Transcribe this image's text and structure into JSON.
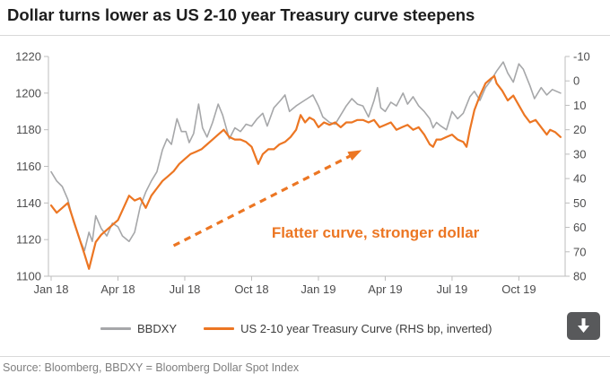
{
  "chart_data": {
    "type": "line",
    "title": "Dollar turns lower as US 2-10 year Treasury curve steepens",
    "x_axis": {
      "unit": "months since Jan 2018",
      "range": [
        0,
        22.87
      ],
      "tick_months": [
        0,
        3,
        6,
        9,
        12,
        15,
        18,
        21
      ],
      "tick_labels": [
        "Jan 18",
        "Apr 18",
        "Jul 18",
        "Oct 18",
        "Jan 19",
        "Apr 19",
        "Jul 19",
        "Oct 19"
      ]
    },
    "left_axis": {
      "min": 1100,
      "max": 1220,
      "step": 20,
      "inverted": false,
      "ticks": [
        1220,
        1200,
        1180,
        1160,
        1140,
        1120,
        1100
      ]
    },
    "right_axis": {
      "min": -10,
      "max": 80,
      "step": 10,
      "inverted": true,
      "unit": "bp",
      "ticks": [
        -10,
        0,
        10,
        20,
        30,
        40,
        50,
        60,
        70,
        80
      ]
    },
    "grid": false,
    "legend_position": "bottom",
    "series": [
      {
        "name": "BBDXY",
        "axis": "left",
        "color": "#a6a7a9",
        "width": 1.6,
        "points": [
          [
            0,
            1157
          ],
          [
            0.25,
            1152
          ],
          [
            0.5,
            1149
          ],
          [
            0.75,
            1142
          ],
          [
            1,
            1130
          ],
          [
            1.25,
            1121
          ],
          [
            1.5,
            1114
          ],
          [
            1.7,
            1124
          ],
          [
            1.85,
            1119
          ],
          [
            2,
            1133
          ],
          [
            2.25,
            1126
          ],
          [
            2.5,
            1122
          ],
          [
            2.75,
            1129
          ],
          [
            3,
            1127
          ],
          [
            3.2,
            1122
          ],
          [
            3.5,
            1119
          ],
          [
            3.75,
            1124
          ],
          [
            4,
            1138
          ],
          [
            4.25,
            1146
          ],
          [
            4.5,
            1152
          ],
          [
            4.75,
            1157
          ],
          [
            5,
            1169
          ],
          [
            5.2,
            1175
          ],
          [
            5.4,
            1172
          ],
          [
            5.65,
            1186
          ],
          [
            5.85,
            1179
          ],
          [
            6.05,
            1179
          ],
          [
            6.2,
            1173
          ],
          [
            6.4,
            1178
          ],
          [
            6.62,
            1194
          ],
          [
            6.8,
            1181
          ],
          [
            7,
            1176
          ],
          [
            7.25,
            1184
          ],
          [
            7.5,
            1194
          ],
          [
            7.7,
            1188
          ],
          [
            8,
            1175
          ],
          [
            8.25,
            1181
          ],
          [
            8.5,
            1179
          ],
          [
            8.75,
            1183
          ],
          [
            9,
            1182
          ],
          [
            9.25,
            1186
          ],
          [
            9.5,
            1189
          ],
          [
            9.7,
            1182
          ],
          [
            10,
            1192
          ],
          [
            10.3,
            1196
          ],
          [
            10.5,
            1199
          ],
          [
            10.7,
            1190
          ],
          [
            11,
            1193
          ],
          [
            11.25,
            1195
          ],
          [
            11.5,
            1197
          ],
          [
            11.75,
            1199
          ],
          [
            12,
            1193
          ],
          [
            12.2,
            1187
          ],
          [
            12.5,
            1184
          ],
          [
            12.75,
            1183
          ],
          [
            13,
            1188
          ],
          [
            13.25,
            1193
          ],
          [
            13.5,
            1197
          ],
          [
            13.75,
            1194
          ],
          [
            14,
            1193
          ],
          [
            14.25,
            1187
          ],
          [
            14.5,
            1196
          ],
          [
            14.65,
            1203
          ],
          [
            14.8,
            1192
          ],
          [
            15,
            1190
          ],
          [
            15.25,
            1195
          ],
          [
            15.5,
            1193
          ],
          [
            15.8,
            1200
          ],
          [
            16,
            1194
          ],
          [
            16.25,
            1198
          ],
          [
            16.5,
            1193
          ],
          [
            16.75,
            1190
          ],
          [
            17,
            1186
          ],
          [
            17.15,
            1181
          ],
          [
            17.3,
            1184
          ],
          [
            17.5,
            1182
          ],
          [
            17.75,
            1180
          ],
          [
            18,
            1190
          ],
          [
            18.25,
            1186
          ],
          [
            18.5,
            1189
          ],
          [
            18.8,
            1198
          ],
          [
            19,
            1201
          ],
          [
            19.25,
            1196
          ],
          [
            19.5,
            1203
          ],
          [
            19.75,
            1207
          ],
          [
            20,
            1212
          ],
          [
            20.3,
            1217
          ],
          [
            20.5,
            1211
          ],
          [
            20.75,
            1206
          ],
          [
            21,
            1216
          ],
          [
            21.2,
            1213
          ],
          [
            21.5,
            1204
          ],
          [
            21.7,
            1197
          ],
          [
            22,
            1203
          ],
          [
            22.25,
            1199
          ],
          [
            22.5,
            1202
          ],
          [
            22.87,
            1200
          ]
        ]
      },
      {
        "name": "US 2-10 year Treasury Curve (RHS bp, inverted)",
        "axis": "right",
        "color": "#ec7623",
        "width": 2.2,
        "points": [
          [
            0,
            51
          ],
          [
            0.25,
            54
          ],
          [
            0.5,
            52
          ],
          [
            0.75,
            50
          ],
          [
            1,
            57
          ],
          [
            1.25,
            64
          ],
          [
            1.5,
            71
          ],
          [
            1.7,
            77
          ],
          [
            2,
            66
          ],
          [
            2.25,
            63
          ],
          [
            2.5,
            61
          ],
          [
            2.75,
            59
          ],
          [
            3,
            57
          ],
          [
            3.25,
            52
          ],
          [
            3.5,
            47
          ],
          [
            3.75,
            49
          ],
          [
            4,
            48
          ],
          [
            4.25,
            52
          ],
          [
            4.5,
            47
          ],
          [
            4.75,
            44
          ],
          [
            5,
            41
          ],
          [
            5.25,
            39
          ],
          [
            5.5,
            37
          ],
          [
            5.75,
            34
          ],
          [
            6,
            32
          ],
          [
            6.25,
            30
          ],
          [
            6.5,
            29
          ],
          [
            6.75,
            28
          ],
          [
            7,
            26
          ],
          [
            7.25,
            24
          ],
          [
            7.5,
            22
          ],
          [
            7.75,
            20
          ],
          [
            8,
            23
          ],
          [
            8.25,
            24
          ],
          [
            8.5,
            24
          ],
          [
            8.75,
            25
          ],
          [
            9,
            27
          ],
          [
            9.3,
            34
          ],
          [
            9.5,
            30
          ],
          [
            9.75,
            28
          ],
          [
            10,
            28
          ],
          [
            10.25,
            26
          ],
          [
            10.5,
            25
          ],
          [
            10.75,
            23
          ],
          [
            11,
            20
          ],
          [
            11.2,
            14
          ],
          [
            11.4,
            17
          ],
          [
            11.6,
            15
          ],
          [
            11.8,
            16
          ],
          [
            12,
            19
          ],
          [
            12.25,
            17
          ],
          [
            12.5,
            18
          ],
          [
            12.75,
            17
          ],
          [
            13,
            19
          ],
          [
            13.25,
            17
          ],
          [
            13.5,
            17
          ],
          [
            13.75,
            16
          ],
          [
            14,
            16
          ],
          [
            14.25,
            17
          ],
          [
            14.5,
            16
          ],
          [
            14.75,
            19
          ],
          [
            15,
            18
          ],
          [
            15.25,
            17
          ],
          [
            15.5,
            20
          ],
          [
            15.75,
            19
          ],
          [
            16,
            18
          ],
          [
            16.25,
            20
          ],
          [
            16.5,
            19
          ],
          [
            16.75,
            22
          ],
          [
            17,
            26
          ],
          [
            17.15,
            27
          ],
          [
            17.3,
            24
          ],
          [
            17.5,
            24
          ],
          [
            17.75,
            23
          ],
          [
            18,
            22
          ],
          [
            18.25,
            24
          ],
          [
            18.5,
            25
          ],
          [
            18.65,
            27
          ],
          [
            18.8,
            20
          ],
          [
            19,
            12
          ],
          [
            19.25,
            6
          ],
          [
            19.5,
            1
          ],
          [
            19.75,
            -1
          ],
          [
            19.9,
            -2
          ],
          [
            20,
            1
          ],
          [
            20.25,
            4
          ],
          [
            20.5,
            8
          ],
          [
            20.75,
            6
          ],
          [
            21,
            10
          ],
          [
            21.25,
            14
          ],
          [
            21.5,
            17
          ],
          [
            21.75,
            16
          ],
          [
            22,
            19
          ],
          [
            22.25,
            22
          ],
          [
            22.4,
            20
          ],
          [
            22.87,
            23
          ]
        ]
      }
    ],
    "annotation": {
      "text": "Flatter curve, stronger dollar",
      "color": "#ec7623",
      "axis": "right",
      "arrow": {
        "t1": 5.5,
        "v1": 67.5,
        "t2": 13.8,
        "v2": 29
      },
      "text_t": 9.9,
      "text_v": 62
    }
  },
  "colors": {
    "accent_orange": "#ec7623",
    "line_gray": "#a6a7a9",
    "axis_line": "#bdbdbd",
    "tick_text": "#4d4d4e",
    "title_text": "#1d1d1d",
    "source_text": "#7f7f7f",
    "button_bg": "#58595b"
  },
  "toolbar": {
    "download_icon": "down-arrow"
  },
  "footer": {
    "source": "Source: Bloomberg, BBDXY = Bloomberg Dollar Spot Index"
  }
}
